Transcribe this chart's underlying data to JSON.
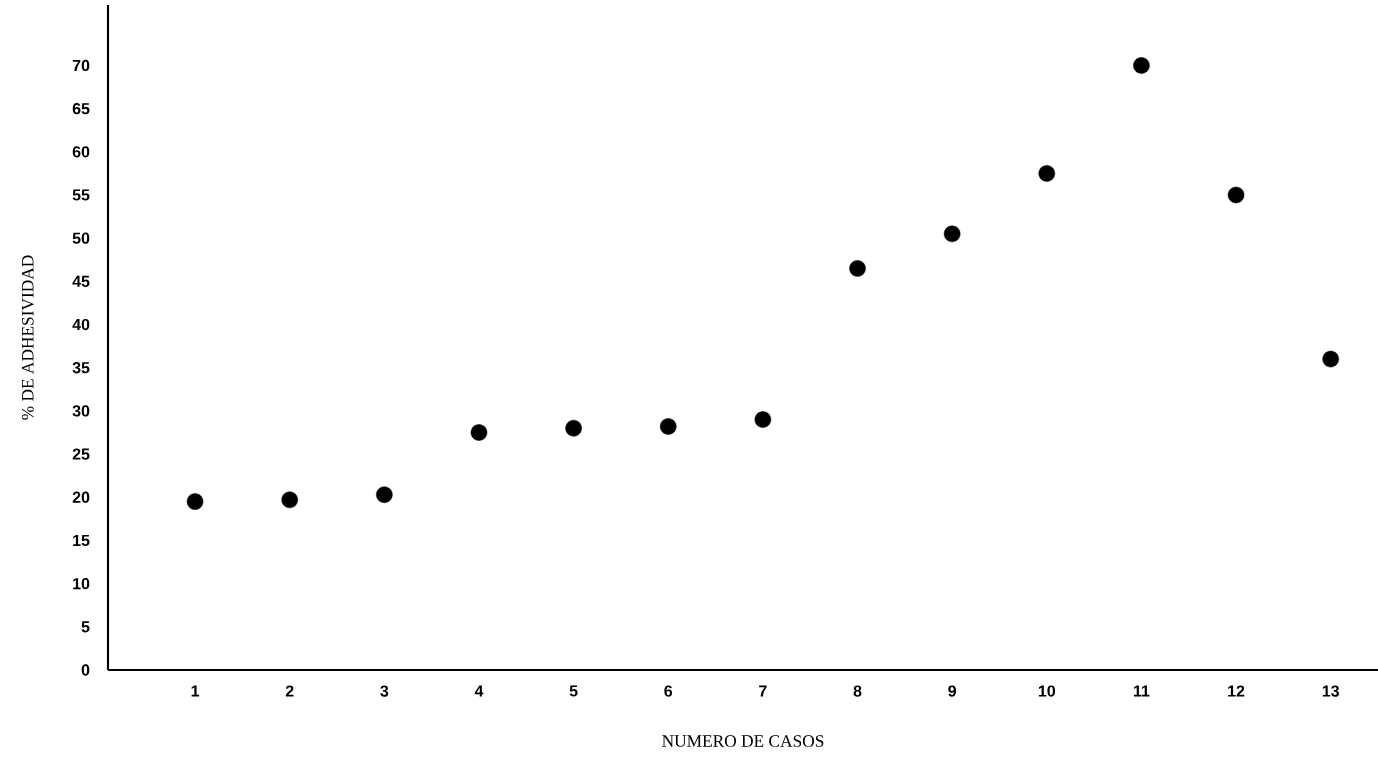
{
  "chart_data": {
    "type": "scatter",
    "xlabel": "NUMERO DE CASOS",
    "ylabel": "% DE ADHESIVIDAD",
    "categories": [
      "1",
      "2",
      "3",
      "4",
      "5",
      "6",
      "7",
      "8",
      "9",
      "10",
      "11",
      "12",
      "13"
    ],
    "values": [
      19.5,
      19.7,
      20.3,
      27.5,
      28,
      28.2,
      29,
      46.5,
      50.5,
      57.5,
      70,
      55,
      36
    ],
    "color": "#000000",
    "marker": "circle",
    "grid": false,
    "ylim": [
      0,
      77
    ],
    "yticks": [
      0,
      5,
      10,
      15,
      20,
      25,
      30,
      35,
      40,
      45,
      50,
      55,
      60,
      65,
      70
    ]
  }
}
